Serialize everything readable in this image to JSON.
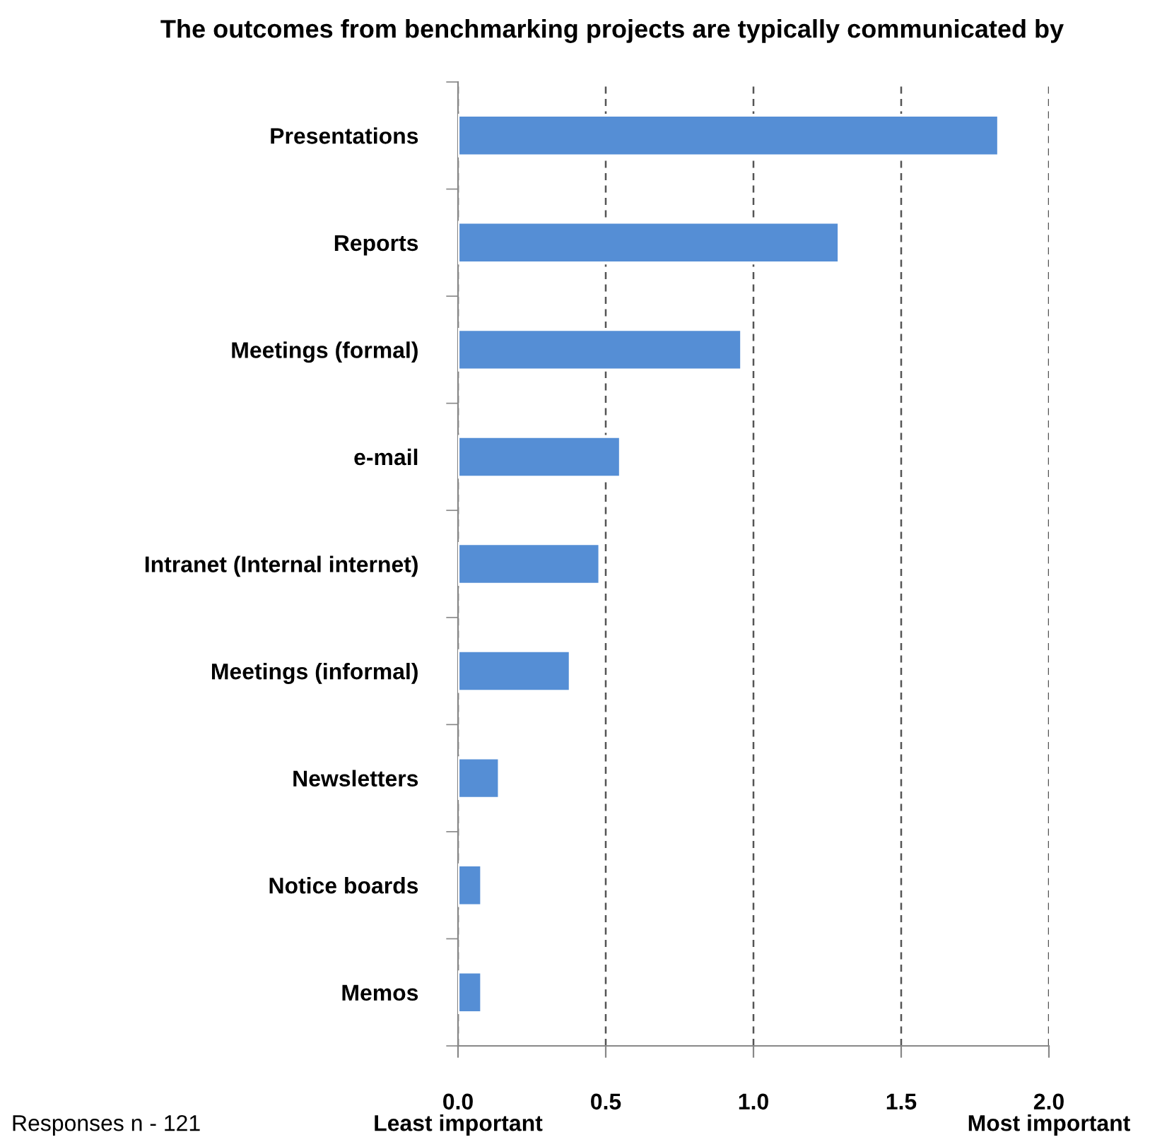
{
  "chart_data": {
    "type": "bar",
    "orientation": "horizontal",
    "title": "The outcomes from benchmarking projects are typically communicated by",
    "categories": [
      "Presentations",
      "Reports",
      "Meetings (formal)",
      "e-mail",
      "Intranet (Internal internet)",
      "Meetings (informal)",
      "Newsletters",
      "Notice boards",
      "Memos"
    ],
    "values": [
      1.83,
      1.29,
      0.96,
      0.55,
      0.48,
      0.38,
      0.14,
      0.08,
      0.08
    ],
    "color": "#558ed5",
    "xlim": [
      0,
      2
    ],
    "xticks": [
      {
        "value": 0,
        "label": "0.0"
      },
      {
        "value": 0.5,
        "label": "0.5"
      },
      {
        "value": 1,
        "label": "1.0"
      },
      {
        "value": 1.5,
        "label": "1.5"
      },
      {
        "value": 2,
        "label": "2.0"
      }
    ],
    "grid": "x",
    "legend": false,
    "annotations": [
      "Responses n - 121",
      "Least important",
      "Most important"
    ]
  }
}
